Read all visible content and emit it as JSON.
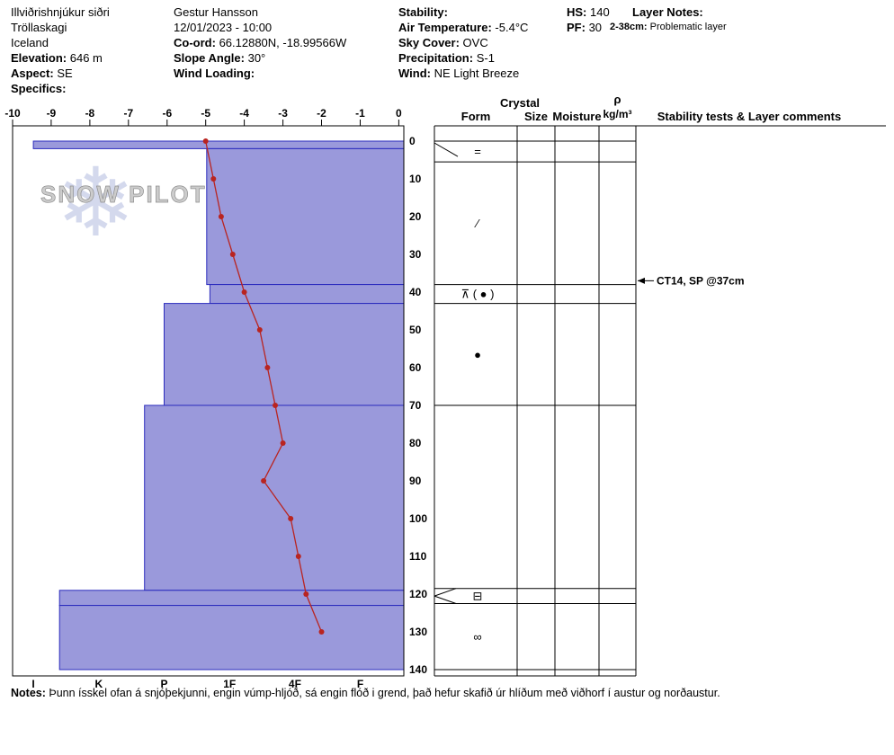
{
  "header": {
    "site": {
      "name": "Illviðrishnjúkur siðri",
      "region": "Tröllaskagi",
      "country": "Iceland",
      "elevation_label": "Elevation:",
      "elevation_value": "646 m",
      "aspect_label": "Aspect:",
      "aspect_value": "SE",
      "specifics_label": "Specifics:",
      "specifics_value": ""
    },
    "observer": {
      "name": "Gestur Hansson",
      "datetime": "12/01/2023 - 10:00",
      "coord_label": "Co-ord:",
      "coord_value": "66.12880N, -18.99566W",
      "slope_label": "Slope Angle:",
      "slope_value": "30°",
      "wind_loading_label": "Wind Loading:",
      "wind_loading_value": ""
    },
    "conditions": {
      "stability_label": "Stability:",
      "stability_value": "",
      "air_temp_label": "Air Temperature:",
      "air_temp_value": "-5.4°C",
      "sky_label": "Sky Cover:",
      "sky_value": "OVC",
      "precip_label": "Precipitation:",
      "precip_value": "S-1",
      "wind_label": "Wind:",
      "wind_value": "NE Light Breeze"
    },
    "totals": {
      "hs_label": "HS:",
      "hs_value": "140",
      "pf_label": "PF:",
      "pf_value": "30"
    },
    "layer_notes": {
      "title": "Layer Notes:",
      "note_range": "2-38cm:",
      "note_text": "Problematic layer"
    }
  },
  "notes": {
    "label": "Notes:",
    "text": "Þunn ísskel ofan á snjóþekjunni, engin vúmp-hljóð, sá engin flóð i grend, það hefur skafið úr hlíðum með viðhorf í austur og norðaustur."
  },
  "chart_data": {
    "type": "snow-profile",
    "watermark": {
      "text": "SNOW PILOT",
      "snowflake_icon": "❄"
    },
    "temp_axis": {
      "unit": "°C",
      "min": -10,
      "max": 0,
      "ticks": [
        -10,
        -9,
        -8,
        -7,
        -6,
        -5,
        -4,
        -3,
        -2,
        -1,
        0
      ]
    },
    "depth_axis": {
      "unit": "cm",
      "min": 0,
      "max": 140,
      "ticks": [
        0,
        10,
        20,
        30,
        40,
        50,
        60,
        70,
        80,
        90,
        100,
        110,
        120,
        130,
        140
      ]
    },
    "hardness_axis": {
      "labels": [
        "I",
        "K",
        "P",
        "1F",
        "4F",
        "F"
      ]
    },
    "layers": [
      {
        "top_cm": 0,
        "bottom_cm": 2,
        "hardness_label": "I",
        "hardness_index": 6.0
      },
      {
        "top_cm": 2,
        "bottom_cm": 38,
        "hardness_label": "1F+",
        "hardness_index": 3.35
      },
      {
        "top_cm": 38,
        "bottom_cm": 43,
        "hardness_label": "1F+",
        "hardness_index": 3.3
      },
      {
        "top_cm": 43,
        "bottom_cm": 70,
        "hardness_label": "P",
        "hardness_index": 4.0
      },
      {
        "top_cm": 70,
        "bottom_cm": 119,
        "hardness_label": "P+",
        "hardness_index": 4.3
      },
      {
        "top_cm": 119,
        "bottom_cm": 123,
        "hardness_label": "K+",
        "hardness_index": 5.6
      },
      {
        "top_cm": 123,
        "bottom_cm": 140,
        "hardness_label": "K+",
        "hardness_index": 5.6
      }
    ],
    "grain_form_rows": [
      {
        "top_cm": 0,
        "bottom_cm": 5.5,
        "symbol": "=",
        "pointer": "diag"
      },
      {
        "top_cm": 5.5,
        "bottom_cm": 38,
        "symbol": "∕",
        "pointer": ""
      },
      {
        "top_cm": 38,
        "bottom_cm": 43,
        "symbol": "⊼ ( ● )",
        "pointer": ""
      },
      {
        "top_cm": 43,
        "bottom_cm": 70,
        "symbol": "●",
        "pointer": ""
      },
      {
        "top_cm": 70,
        "bottom_cm": 118.5,
        "symbol": "",
        "pointer": ""
      },
      {
        "top_cm": 118.5,
        "bottom_cm": 122.5,
        "symbol": "⊟",
        "pointer": "converge"
      },
      {
        "top_cm": 122.5,
        "bottom_cm": 140,
        "symbol": "∞",
        "pointer": ""
      }
    ],
    "temperature_profile": [
      {
        "depth_cm": 0,
        "temp_c": -5.0
      },
      {
        "depth_cm": 10,
        "temp_c": -4.8
      },
      {
        "depth_cm": 20,
        "temp_c": -4.6
      },
      {
        "depth_cm": 30,
        "temp_c": -4.3
      },
      {
        "depth_cm": 40,
        "temp_c": -4.0
      },
      {
        "depth_cm": 50,
        "temp_c": -3.6
      },
      {
        "depth_cm": 60,
        "tem_c_note": "",
        "temp_c": -3.4
      },
      {
        "depth_cm": 70,
        "temp_c": -3.2
      },
      {
        "depth_cm": 80,
        "temp_c": -3.0
      },
      {
        "depth_cm": 90,
        "temp_c": -3.5
      },
      {
        "depth_cm": 100,
        "temp_c": -2.8
      },
      {
        "depth_cm": 110,
        "temp_c": -2.6
      },
      {
        "depth_cm": 120,
        "temp_c": -2.4
      },
      {
        "depth_cm": 130,
        "temp_c": -2.0
      }
    ],
    "stability_tests": [
      {
        "depth_cm": 37,
        "label": "CT14, SP @37cm"
      }
    ],
    "panel_headers": {
      "crystal": "Crystal",
      "form": "Form",
      "size": "Size",
      "moisture": "Moisture",
      "density_symbol": "ρ",
      "density_unit": "kg/m³",
      "comments": "Stability tests & Layer comments"
    },
    "colors": {
      "bar_fill": "#9a99db",
      "bar_stroke": "#2b2bbd",
      "temp_line": "#b92420",
      "watermark_flake": "#aab4dd",
      "watermark_text": "#cccccc"
    }
  }
}
